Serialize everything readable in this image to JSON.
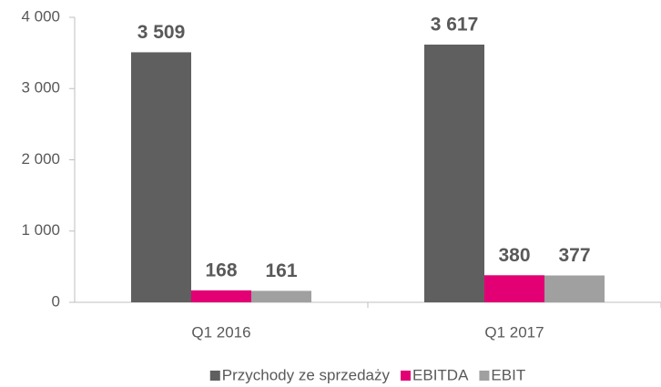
{
  "chart_data": {
    "type": "bar",
    "categories": [
      "Q1 2016",
      "Q1 2017"
    ],
    "series": [
      {
        "name": "Przychody ze sprzedaży",
        "color": "#5f5f5f",
        "values": [
          3509,
          3617
        ],
        "value_labels": [
          "3 509",
          "3 617"
        ]
      },
      {
        "name": "EBITDA",
        "color": "#e20074",
        "values": [
          168,
          380
        ],
        "value_labels": [
          "168",
          "380"
        ]
      },
      {
        "name": "EBIT",
        "color": "#a0a0a0",
        "values": [
          161,
          377
        ],
        "value_labels": [
          "161",
          "377"
        ]
      }
    ],
    "ylim": [
      0,
      4000
    ],
    "yticks": [
      0,
      {
        "value": 1000,
        "label": "1 000"
      },
      {
        "value": 2000,
        "label": "2 000"
      },
      {
        "value": 3000,
        "label": "3 000"
      },
      {
        "value": 4000,
        "label": "4 000"
      }
    ],
    "grid": false,
    "legend": "bottom"
  }
}
